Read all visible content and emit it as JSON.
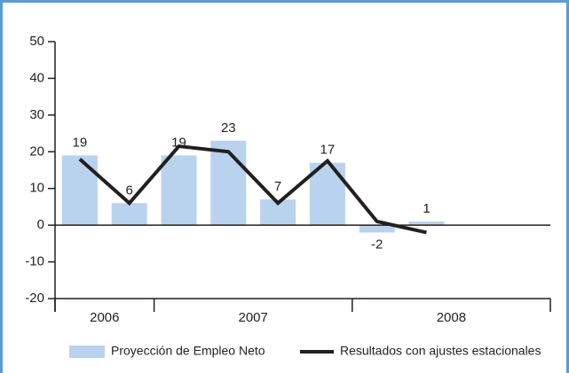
{
  "chart_data": {
    "type": "bar_line",
    "categories": [
      null,
      null,
      null,
      null,
      null,
      null,
      null,
      null,
      null,
      null
    ],
    "x_groups": [
      "2006",
      "2007",
      "2008"
    ],
    "group_sizes": [
      2,
      4,
      4
    ],
    "series": [
      {
        "name": "Proyección de Empleo Neto",
        "type": "bar",
        "color": "#b9d3ee",
        "values": [
          19,
          6,
          19,
          23,
          7,
          17,
          -2,
          1,
          null,
          null
        ]
      },
      {
        "name": "Resultados con ajustes estacionales",
        "type": "line",
        "color": "#231f20",
        "values": [
          18,
          6,
          21.5,
          20,
          6,
          17.5,
          1,
          -2,
          null,
          null
        ]
      }
    ],
    "ylim": [
      -20,
      50
    ],
    "yticks": [
      -20,
      -10,
      0,
      10,
      20,
      30,
      40,
      50
    ],
    "legend": "bottom"
  }
}
